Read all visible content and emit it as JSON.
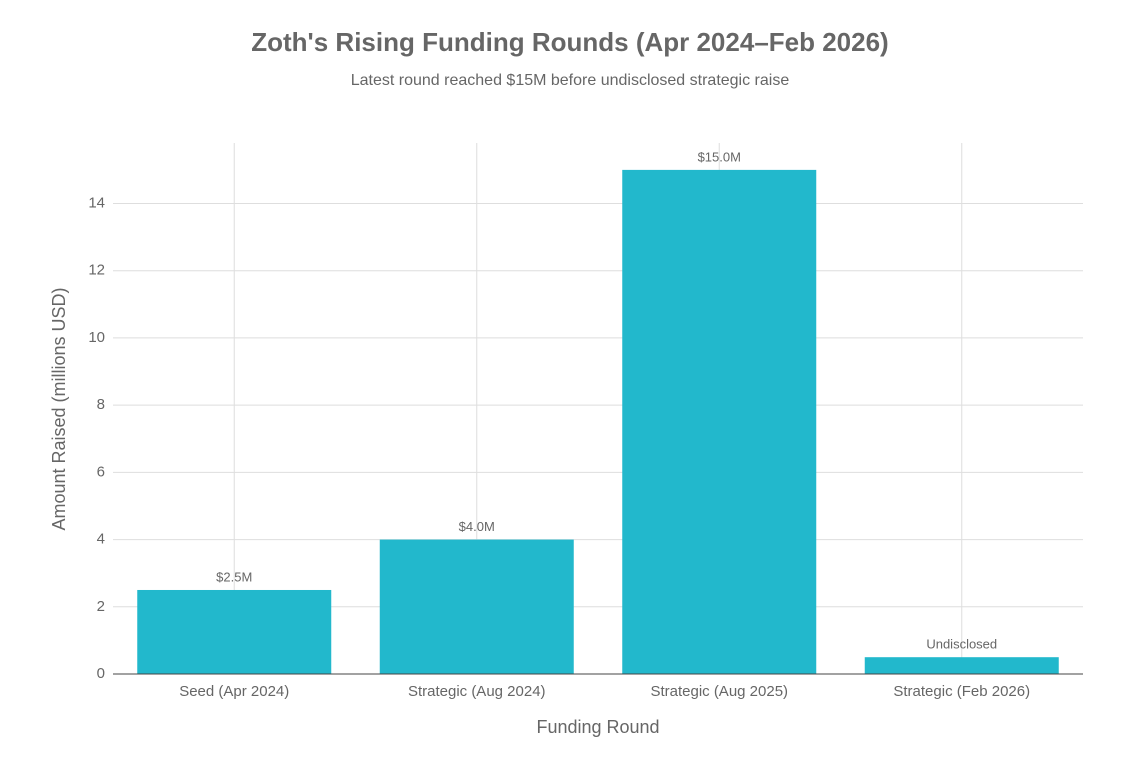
{
  "chart_data": {
    "type": "bar",
    "title": "Zoth's Rising Funding Rounds (Apr 2024–Feb 2026)",
    "subtitle": "Latest round reached $15M before undisclosed strategic raise",
    "x_label": "Funding Round",
    "y_label": "Amount Raised (millions USD)",
    "categories": [
      "Seed (Apr 2024)",
      "Strategic (Aug 2024)",
      "Strategic (Aug 2025)",
      "Strategic (Feb 2026)"
    ],
    "values": [
      2.5,
      4.0,
      15.0,
      0.5
    ],
    "value_labels": [
      "$2.5M",
      "$4.0M",
      "$15.0M",
      "Undisclosed"
    ],
    "color": "#22b8cc",
    "ylim": [
      0,
      15.8
    ],
    "yticks": [
      0,
      2,
      4,
      6,
      8,
      10,
      12,
      14
    ],
    "grid": true
  }
}
